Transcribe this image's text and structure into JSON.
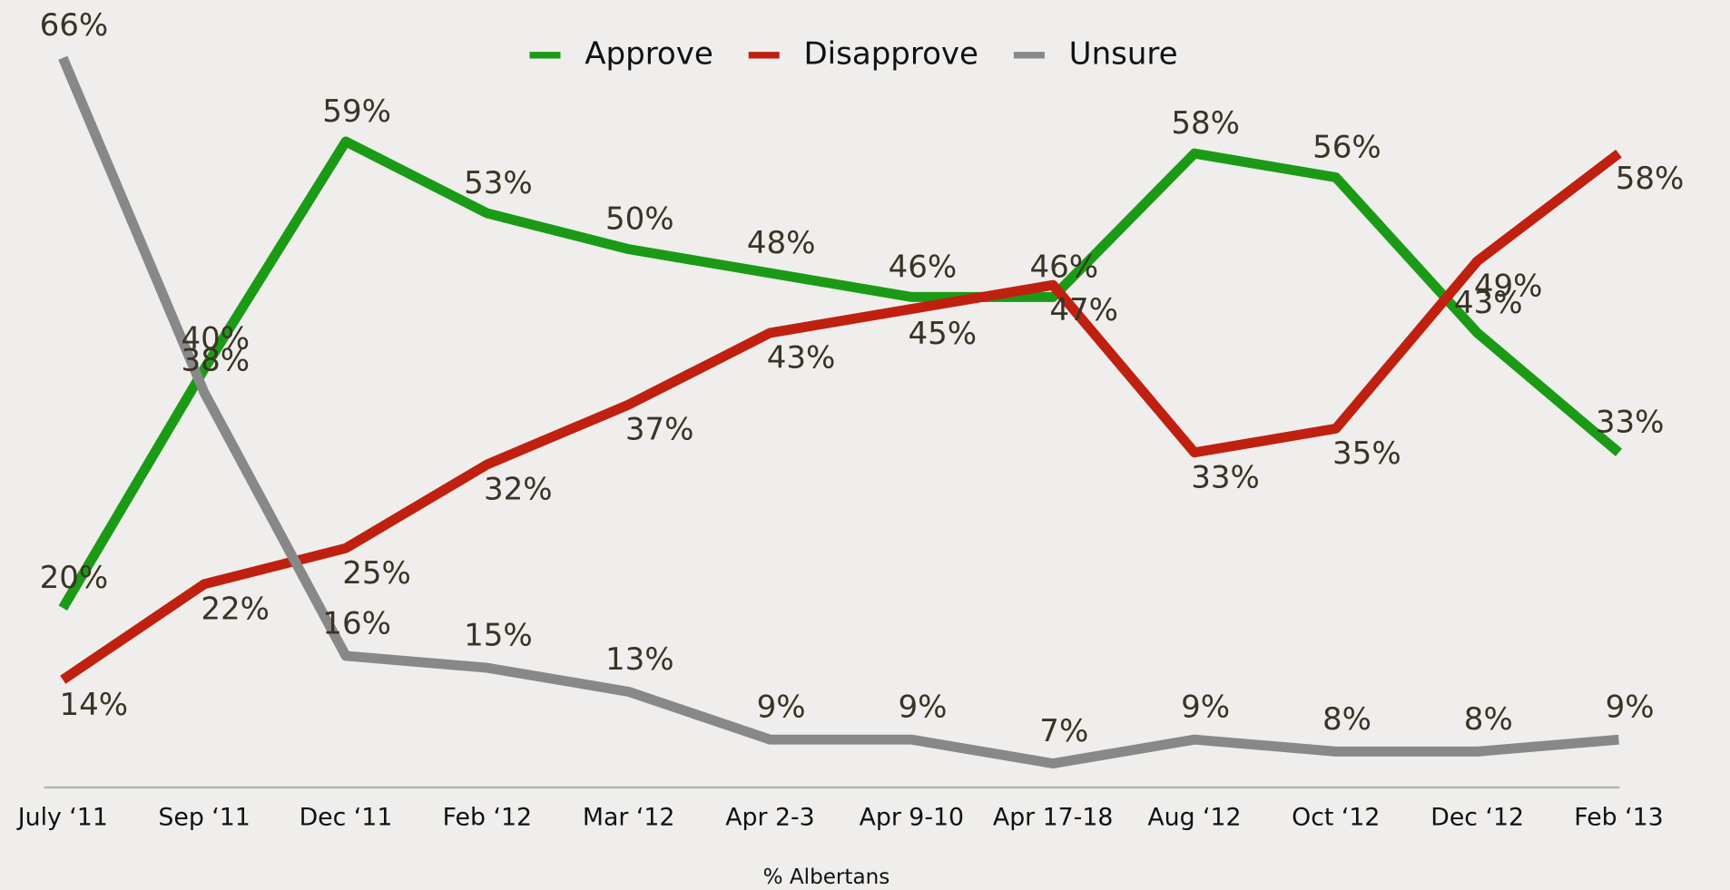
{
  "chart_data": {
    "type": "line",
    "x_label": "% Albertans",
    "categories": [
      "July ‘11",
      "Sep ‘11",
      "Dec ‘11",
      "Feb ‘12",
      "Mar ‘12",
      "Apr 2-3",
      "Apr 9-10",
      "Apr 17-18",
      "Aug ‘12",
      "Oct ‘12",
      "Dec ‘12",
      "Feb ‘13"
    ],
    "series": [
      {
        "name": "Approve",
        "color": "#1b9a16",
        "values": [
          20,
          40,
          59,
          53,
          50,
          48,
          46,
          46,
          58,
          56,
          43,
          33
        ],
        "value_labels": [
          "20%",
          "40%",
          "59%",
          "53%",
          "50%",
          "48%",
          "46%",
          "46%",
          "58%",
          "56%",
          "43%",
          "33%"
        ]
      },
      {
        "name": "Disapprove",
        "color": "#c0200f",
        "values": [
          14,
          22,
          25,
          32,
          37,
          43,
          45,
          47,
          33,
          35,
          49,
          58
        ],
        "value_labels": [
          "14%",
          "22%",
          "25%",
          "32%",
          "37%",
          "43%",
          "45%",
          "47%",
          "33%",
          "35%",
          "49%",
          "58%"
        ]
      },
      {
        "name": "Unsure",
        "color": "#888888",
        "values": [
          66,
          38,
          16,
          15,
          13,
          9,
          9,
          7,
          9,
          8,
          8,
          9
        ],
        "value_labels": [
          "66%",
          "38%",
          "16%",
          "15%",
          "13%",
          "9%",
          "9%",
          "7%",
          "9%",
          "8%",
          "8%",
          "9%"
        ]
      }
    ],
    "ylim": [
      5,
      70
    ],
    "legend": "top"
  }
}
